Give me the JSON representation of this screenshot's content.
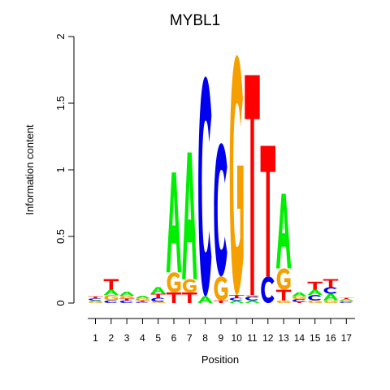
{
  "chart_data": {
    "type": "sequence-logo",
    "title": "MYBL1",
    "xlabel": "Position",
    "ylabel": "Information content",
    "ylim": [
      0,
      2
    ],
    "yticks": [
      0,
      0.5,
      1,
      1.5,
      2
    ],
    "ytick_labels": [
      "0",
      "0.5",
      "1",
      "1.5",
      "2"
    ],
    "positions": [
      "1",
      "2",
      "3",
      "4",
      "5",
      "6",
      "7",
      "8",
      "9",
      "10",
      "11",
      "12",
      "13",
      "14",
      "15",
      "16",
      "17"
    ],
    "colors": {
      "A": "#00ee00",
      "C": "#0000ee",
      "G": "#f5a000",
      "T": "#ff0000"
    },
    "columns": [
      [
        {
          "l": "G",
          "h": 0.01
        },
        {
          "l": "A",
          "h": 0.01
        },
        {
          "l": "C",
          "h": 0.015
        },
        {
          "l": "T",
          "h": 0.015
        }
      ],
      [
        {
          "l": "C",
          "h": 0.02
        },
        {
          "l": "G",
          "h": 0.04
        },
        {
          "l": "A",
          "h": 0.04
        },
        {
          "l": "T",
          "h": 0.08
        }
      ],
      [
        {
          "l": "C",
          "h": 0.02
        },
        {
          "l": "T",
          "h": 0.015
        },
        {
          "l": "G",
          "h": 0.02
        },
        {
          "l": "A",
          "h": 0.03
        }
      ],
      [
        {
          "l": "C",
          "h": 0.01
        },
        {
          "l": "T",
          "h": 0.01
        },
        {
          "l": "G",
          "h": 0.015
        },
        {
          "l": "A",
          "h": 0.02
        }
      ],
      [
        {
          "l": "G",
          "h": 0.01
        },
        {
          "l": "C",
          "h": 0.03
        },
        {
          "l": "T",
          "h": 0.03
        },
        {
          "l": "A",
          "h": 0.05
        }
      ],
      [
        {
          "l": "T",
          "h": 0.08
        },
        {
          "l": "G",
          "h": 0.15
        },
        {
          "l": "A",
          "h": 0.75
        }
      ],
      [
        {
          "l": "T",
          "h": 0.08
        },
        {
          "l": "G",
          "h": 0.1
        },
        {
          "l": "A",
          "h": 0.95
        }
      ],
      [
        {
          "l": "A",
          "h": 0.05
        },
        {
          "l": "C",
          "h": 1.65
        }
      ],
      [
        {
          "l": "T",
          "h": 0.02
        },
        {
          "l": "G",
          "h": 0.18
        },
        {
          "l": "C",
          "h": 1.0
        }
      ],
      [
        {
          "l": "A",
          "h": 0.02
        },
        {
          "l": "C",
          "h": 0.02
        },
        {
          "l": "T",
          "h": 0.02
        },
        {
          "l": "G",
          "h": 1.8
        }
      ],
      [
        {
          "l": "A",
          "h": 0.02
        },
        {
          "l": "C",
          "h": 0.03
        },
        {
          "l": "G",
          "h": 0.01
        },
        {
          "l": "T",
          "h": 1.65
        }
      ],
      [
        {
          "l": "C",
          "h": 0.2
        },
        {
          "l": "T",
          "h": 0.98
        }
      ],
      [
        {
          "l": "G",
          "h": 0.02
        },
        {
          "l": "T",
          "h": 0.08
        },
        {
          "l": "G",
          "h": 0.16
        },
        {
          "l": "A",
          "h": 0.56
        }
      ],
      [
        {
          "l": "T",
          "h": 0.01
        },
        {
          "l": "C",
          "h": 0.02
        },
        {
          "l": "G",
          "h": 0.02
        },
        {
          "l": "A",
          "h": 0.03
        }
      ],
      [
        {
          "l": "G",
          "h": 0.02
        },
        {
          "l": "C",
          "h": 0.04
        },
        {
          "l": "A",
          "h": 0.04
        },
        {
          "l": "T",
          "h": 0.06
        }
      ],
      [
        {
          "l": "G",
          "h": 0.02
        },
        {
          "l": "A",
          "h": 0.05
        },
        {
          "l": "C",
          "h": 0.05
        },
        {
          "l": "T",
          "h": 0.06
        }
      ],
      [
        {
          "l": "C",
          "h": 0.01
        },
        {
          "l": "G",
          "h": 0.01
        },
        {
          "l": "A",
          "h": 0.01
        },
        {
          "l": "T",
          "h": 0.01
        }
      ]
    ]
  }
}
